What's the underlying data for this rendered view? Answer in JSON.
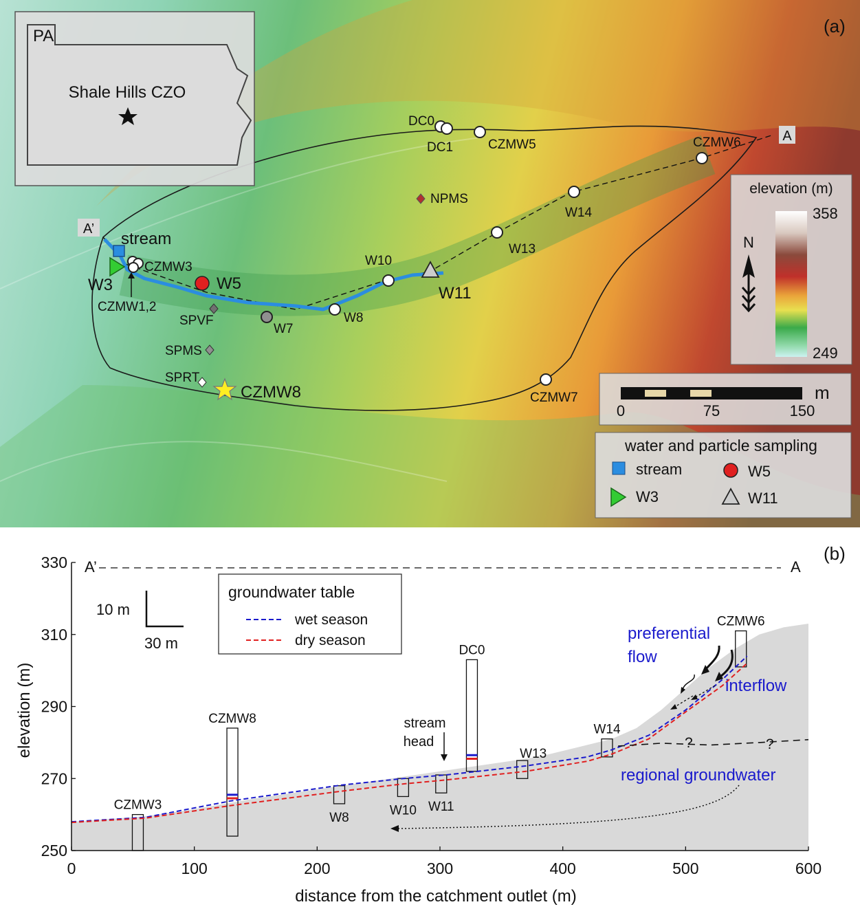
{
  "map": {
    "panel_label": "(a)",
    "inset": {
      "state": "PA",
      "site": "Shale Hills CZO"
    },
    "transect": {
      "start": "A’",
      "end": "A"
    },
    "sites": {
      "DC0": "DC0",
      "DC1": "DC1",
      "CZMW5": "CZMW5",
      "CZMW6": "CZMW6",
      "NPMS": "NPMS",
      "W14": "W14",
      "W13": "W13",
      "W10": "W10",
      "W11": "W11",
      "stream": "stream",
      "CZMW3": "CZMW3",
      "W3": "W3",
      "CZMW12": "CZMW1,2",
      "W5": "W5",
      "SPVF": "SPVF",
      "W7": "W7",
      "W8": "W8",
      "SPMS": "SPMS",
      "SPRT": "SPRT",
      "CZMW8": "CZMW8",
      "CZMW7": "CZMW7"
    },
    "elevation_legend": {
      "title": "elevation (m)",
      "max": "358",
      "min": "249"
    },
    "north_label": "N",
    "scalebar": {
      "unit": "m",
      "ticks": [
        "0",
        "75",
        "150"
      ]
    },
    "sampling_legend": {
      "title": "water and particle sampling",
      "items": {
        "stream": "stream",
        "W5": "W5",
        "W3": "W3",
        "W11": "W11"
      }
    },
    "colors": {
      "stream": "#2b8de0",
      "W5": "#e02020",
      "W3": "#33cc33",
      "W11": "#cccccc",
      "CZMW8": "#ffee22",
      "W7": "#909090",
      "NPMS": "#b03030",
      "grey_diamond": "#707070"
    }
  },
  "chart_data": {
    "type": "line",
    "panel_label": "(b)",
    "xlabel": "distance from the catchment outlet (m)",
    "ylabel": "elevation (m)",
    "xlim": [
      0,
      600
    ],
    "ylim": [
      250,
      330
    ],
    "x_ticks": [
      "0",
      "100",
      "200",
      "300",
      "400",
      "500",
      "600"
    ],
    "y_ticks": [
      "250",
      "270",
      "290",
      "310",
      "330"
    ],
    "transect": {
      "start": "A’",
      "end": "A",
      "elevation": 328.5
    },
    "scale": {
      "vertical": "10 m",
      "horizontal": "30 m"
    },
    "legend": {
      "title": "groundwater table",
      "wet": "wet season",
      "dry": "dry season"
    },
    "colors": {
      "wet": "#1a1acc",
      "dry": "#e02020",
      "ground": "#d9d9d9",
      "flow_text": "#1a1acc"
    },
    "ground_surface": {
      "x": [
        0,
        60,
        100,
        150,
        200,
        250,
        300,
        350,
        380,
        410,
        440,
        460,
        480,
        500,
        520,
        540,
        560,
        580,
        600
      ],
      "y": [
        258,
        259.5,
        261.5,
        264.5,
        267,
        269.5,
        272,
        274.5,
        276,
        278.5,
        281,
        284,
        289,
        295,
        301,
        306,
        310,
        312,
        313
      ]
    },
    "series": [
      {
        "name": "wet season",
        "x": [
          0,
          60,
          130,
          220,
          270,
          305,
          370,
          420,
          440,
          470,
          500,
          530,
          550
        ],
        "y": [
          258,
          259.2,
          263.8,
          268.2,
          270,
          271,
          273.5,
          276,
          278,
          282,
          289,
          297.5,
          304
        ]
      },
      {
        "name": "dry season",
        "x": [
          0,
          60,
          130,
          220,
          270,
          305,
          370,
          420,
          440,
          470,
          500,
          530,
          550
        ],
        "y": [
          257.8,
          259,
          262.5,
          266.5,
          268.5,
          269.6,
          272,
          274.8,
          276.8,
          281,
          288.5,
          295.8,
          302
        ]
      }
    ],
    "regional_groundwater": {
      "label": "regional groundwater",
      "x": [
        445,
        480,
        520,
        560,
        600
      ],
      "y": [
        279,
        279.8,
        279.3,
        280,
        280.8
      ],
      "unknown_marks": [
        "?",
        "?"
      ]
    },
    "flow_labels": {
      "preferential": [
        "preferential",
        "flow"
      ],
      "interflow": "interflow"
    },
    "stream_head": [
      "stream",
      "head"
    ],
    "wells": [
      {
        "name": "CZMW3",
        "x": 54,
        "top": 260,
        "bottom": 250,
        "wet": null,
        "dry": null
      },
      {
        "name": "CZMW8",
        "x": 131,
        "top": 284,
        "bottom": 254,
        "wet": 265.5,
        "dry": 264.5
      },
      {
        "name": "W8",
        "x": 218,
        "top": 268,
        "bottom": 263,
        "wet": null,
        "dry": null
      },
      {
        "name": "W10",
        "x": 270,
        "top": 270,
        "bottom": 265,
        "wet": null,
        "dry": null
      },
      {
        "name": "W11",
        "x": 301,
        "top": 271,
        "bottom": 266,
        "wet": null,
        "dry": null
      },
      {
        "name": "DC0",
        "x": 326,
        "top": 303,
        "bottom": 272,
        "wet": 276.5,
        "dry": 275.5
      },
      {
        "name": "W13",
        "x": 367,
        "top": 275,
        "bottom": 270,
        "wet": null,
        "dry": null
      },
      {
        "name": "W14",
        "x": 436,
        "top": 281,
        "bottom": 276,
        "wet": null,
        "dry": null
      },
      {
        "name": "CZMW6",
        "x": 545,
        "top": 311,
        "bottom": 301,
        "wet": null,
        "dry": null
      }
    ]
  }
}
